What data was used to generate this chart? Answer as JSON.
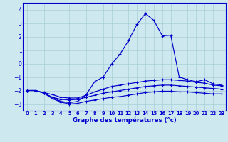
{
  "xlabel": "Graphe des températures (°c)",
  "xlim": [
    -0.5,
    23.5
  ],
  "ylim": [
    -3.5,
    4.5
  ],
  "yticks": [
    -3,
    -2,
    -1,
    0,
    1,
    2,
    3,
    4
  ],
  "xticks": [
    0,
    1,
    2,
    3,
    4,
    5,
    6,
    7,
    8,
    9,
    10,
    11,
    12,
    13,
    14,
    15,
    16,
    17,
    18,
    19,
    20,
    21,
    22,
    23
  ],
  "bg_color": "#cde8ef",
  "grid_color": "#a8cdd6",
  "line_color": "#0000cc",
  "line1": [
    [
      0,
      -2.0
    ],
    [
      1,
      -2.0
    ],
    [
      2,
      -2.2
    ],
    [
      3,
      -2.5
    ],
    [
      4,
      -2.8
    ],
    [
      5,
      -2.9
    ],
    [
      6,
      -2.8
    ],
    [
      7,
      -2.3
    ],
    [
      8,
      -1.35
    ],
    [
      9,
      -1.0
    ],
    [
      10,
      -0.05
    ],
    [
      11,
      0.7
    ],
    [
      12,
      1.7
    ],
    [
      13,
      2.9
    ],
    [
      14,
      3.7
    ],
    [
      15,
      3.2
    ],
    [
      16,
      2.05
    ],
    [
      17,
      2.1
    ],
    [
      18,
      -1.0
    ],
    [
      19,
      -1.2
    ],
    [
      20,
      -1.35
    ],
    [
      21,
      -1.2
    ],
    [
      22,
      -1.5
    ],
    [
      23,
      -1.6
    ]
  ],
  "line2": [
    [
      0,
      -2.0
    ],
    [
      1,
      -2.0
    ],
    [
      2,
      -2.15
    ],
    [
      3,
      -2.3
    ],
    [
      4,
      -2.5
    ],
    [
      5,
      -2.55
    ],
    [
      6,
      -2.55
    ],
    [
      7,
      -2.35
    ],
    [
      8,
      -2.1
    ],
    [
      9,
      -1.9
    ],
    [
      10,
      -1.7
    ],
    [
      11,
      -1.6
    ],
    [
      12,
      -1.5
    ],
    [
      13,
      -1.4
    ],
    [
      14,
      -1.3
    ],
    [
      15,
      -1.25
    ],
    [
      16,
      -1.2
    ],
    [
      17,
      -1.2
    ],
    [
      18,
      -1.25
    ],
    [
      19,
      -1.3
    ],
    [
      20,
      -1.4
    ],
    [
      21,
      -1.45
    ],
    [
      22,
      -1.6
    ],
    [
      23,
      -1.65
    ]
  ],
  "line3": [
    [
      0,
      -2.0
    ],
    [
      1,
      -2.0
    ],
    [
      2,
      -2.2
    ],
    [
      3,
      -2.5
    ],
    [
      4,
      -2.65
    ],
    [
      5,
      -2.7
    ],
    [
      6,
      -2.65
    ],
    [
      7,
      -2.5
    ],
    [
      8,
      -2.35
    ],
    [
      9,
      -2.2
    ],
    [
      10,
      -2.1
    ],
    [
      11,
      -2.0
    ],
    [
      12,
      -1.9
    ],
    [
      13,
      -1.8
    ],
    [
      14,
      -1.7
    ],
    [
      15,
      -1.65
    ],
    [
      16,
      -1.6
    ],
    [
      17,
      -1.6
    ],
    [
      18,
      -1.65
    ],
    [
      19,
      -1.7
    ],
    [
      20,
      -1.75
    ],
    [
      21,
      -1.8
    ],
    [
      22,
      -1.85
    ],
    [
      23,
      -1.9
    ]
  ],
  "line4": [
    [
      2,
      -2.2
    ],
    [
      3,
      -2.6
    ],
    [
      4,
      -2.85
    ],
    [
      5,
      -3.0
    ],
    [
      6,
      -2.95
    ],
    [
      7,
      -2.8
    ],
    [
      8,
      -2.7
    ],
    [
      9,
      -2.6
    ],
    [
      10,
      -2.5
    ],
    [
      11,
      -2.45
    ],
    [
      12,
      -2.35
    ],
    [
      13,
      -2.25
    ],
    [
      14,
      -2.15
    ],
    [
      15,
      -2.1
    ],
    [
      16,
      -2.05
    ],
    [
      17,
      -2.05
    ],
    [
      18,
      -2.1
    ],
    [
      19,
      -2.1
    ],
    [
      20,
      -2.15
    ],
    [
      21,
      -2.2
    ],
    [
      22,
      -2.25
    ],
    [
      23,
      -2.25
    ]
  ]
}
